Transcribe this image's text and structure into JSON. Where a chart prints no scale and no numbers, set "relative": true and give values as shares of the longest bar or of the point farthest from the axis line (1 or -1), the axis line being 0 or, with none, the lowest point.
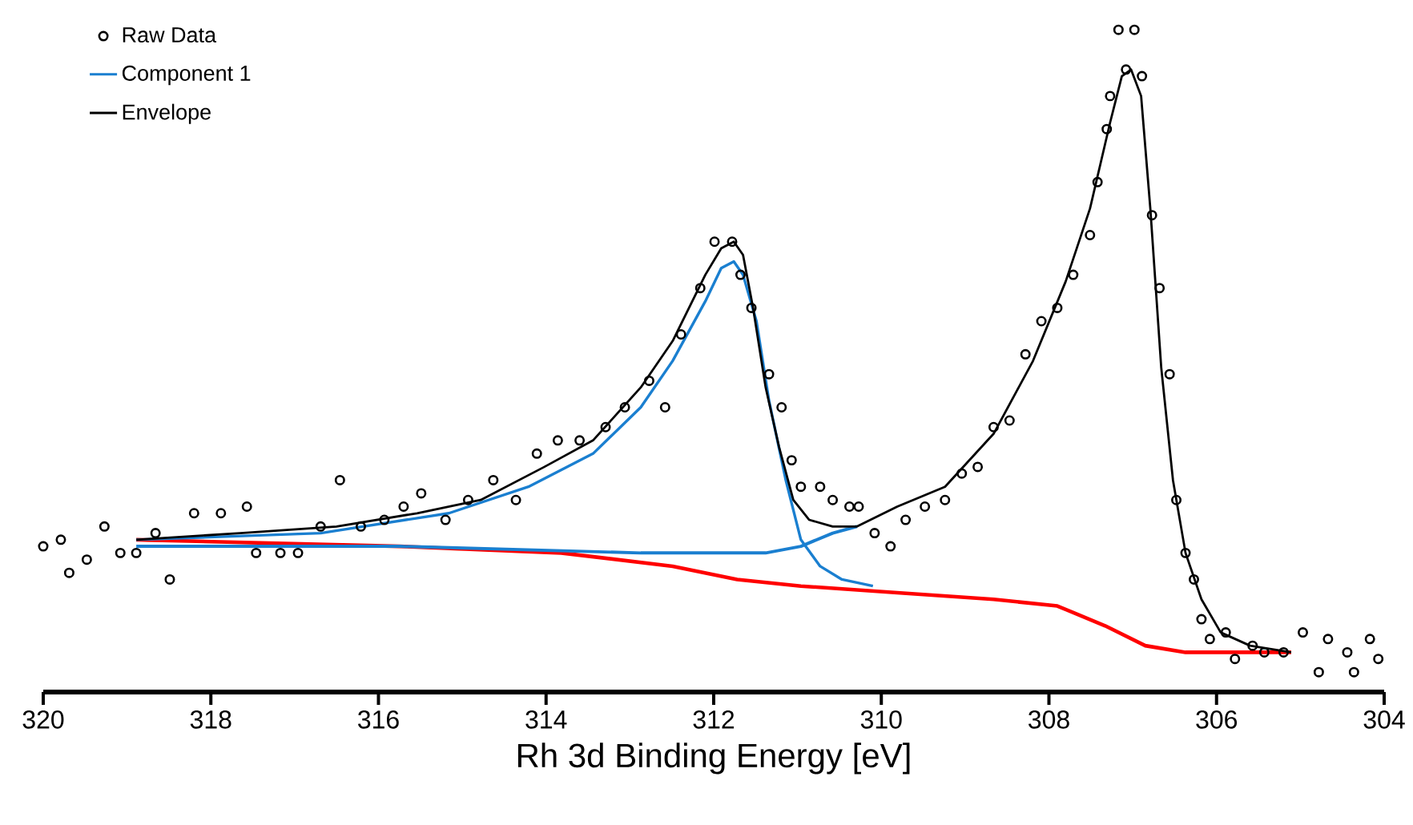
{
  "chart_data": {
    "type": "line",
    "xlabel": "Rh 3d Binding Energy [eV]",
    "relative": true,
    "xlim": [
      320,
      304
    ],
    "xticks": [
      320,
      318,
      316,
      314,
      312,
      310,
      308,
      306,
      304
    ],
    "legend": "top left",
    "series": [
      {
        "name": "Raw Data",
        "type": "scatter",
        "marker": "circle",
        "color": "#000000",
        "x": [
          320.0,
          319.79,
          319.69,
          319.48,
          319.27,
          319.08,
          318.89,
          318.66,
          318.49,
          318.2,
          317.88,
          317.57,
          317.46,
          317.17,
          316.96,
          316.69,
          316.46,
          316.21,
          315.93,
          315.7,
          315.49,
          315.2,
          314.93,
          314.63,
          314.36,
          314.11,
          313.86,
          313.6,
          313.29,
          313.06,
          312.77,
          312.58,
          312.39,
          312.16,
          311.99,
          311.78,
          311.68,
          311.55,
          311.34,
          311.19,
          311.07,
          310.96,
          310.73,
          310.58,
          310.38,
          310.27,
          310.08,
          309.89,
          309.71,
          309.48,
          309.24,
          309.04,
          308.85,
          308.66,
          308.47,
          308.28,
          308.09,
          307.9,
          307.71,
          307.51,
          307.42,
          307.31,
          307.27,
          307.17,
          307.08,
          306.98,
          306.89,
          306.77,
          306.68,
          306.56,
          306.48,
          306.37,
          306.27,
          306.18,
          306.08,
          305.89,
          305.78,
          305.57,
          305.43,
          305.2,
          304.97,
          304.78,
          304.67,
          304.44,
          304.36,
          304.17,
          304.07
        ],
        "values": [
          0.22,
          0.23,
          0.18,
          0.2,
          0.25,
          0.21,
          0.21,
          0.24,
          0.17,
          0.27,
          0.27,
          0.28,
          0.21,
          0.21,
          0.21,
          0.25,
          0.32,
          0.25,
          0.26,
          0.28,
          0.3,
          0.26,
          0.29,
          0.32,
          0.29,
          0.36,
          0.38,
          0.38,
          0.4,
          0.43,
          0.47,
          0.43,
          0.54,
          0.61,
          0.68,
          0.68,
          0.63,
          0.58,
          0.48,
          0.43,
          0.35,
          0.31,
          0.31,
          0.29,
          0.28,
          0.28,
          0.24,
          0.22,
          0.26,
          0.28,
          0.29,
          0.33,
          0.34,
          0.4,
          0.41,
          0.51,
          0.56,
          0.58,
          0.63,
          0.69,
          0.77,
          0.85,
          0.9,
          1.0,
          0.94,
          1.0,
          0.93,
          0.72,
          0.61,
          0.48,
          0.29,
          0.21,
          0.17,
          0.11,
          0.08,
          0.09,
          0.05,
          0.07,
          0.06,
          0.06,
          0.09,
          0.03,
          0.08,
          0.06,
          0.03,
          0.08,
          0.05
        ]
      },
      {
        "type": "line",
        "color": "#ff0000",
        "x": [
          318.89,
          315.74,
          313.82,
          312.49,
          311.72,
          310.96,
          309.81,
          308.66,
          307.9,
          307.33,
          306.85,
          306.37,
          305.11
        ],
        "values": [
          0.23,
          0.22,
          0.21,
          0.19,
          0.17,
          0.16,
          0.15,
          0.14,
          0.13,
          0.1,
          0.07,
          0.06,
          0.06
        ]
      },
      {
        "type": "line",
        "color": "#1a7fd0",
        "x": [
          318.89,
          315.74,
          312.87,
          311.91,
          311.38,
          310.96,
          310.58,
          310.29
        ],
        "values": [
          0.22,
          0.22,
          0.21,
          0.21,
          0.21,
          0.22,
          0.24,
          0.25
        ]
      },
      {
        "name": "Component 1",
        "type": "line",
        "color": "#1a7fd0",
        "x": [
          318.89,
          316.69,
          315.16,
          314.21,
          313.44,
          312.87,
          312.49,
          312.1,
          311.91,
          311.76,
          311.65,
          311.49,
          311.34,
          311.14,
          310.96,
          310.73,
          310.47,
          310.1
        ],
        "values": [
          0.23,
          0.24,
          0.27,
          0.31,
          0.36,
          0.43,
          0.5,
          0.59,
          0.64,
          0.65,
          0.63,
          0.56,
          0.44,
          0.32,
          0.23,
          0.19,
          0.17,
          0.16
        ]
      },
      {
        "name": "Envelope",
        "type": "line",
        "color": "#000000",
        "x": [
          318.89,
          317.65,
          316.5,
          315.54,
          314.78,
          314.02,
          313.44,
          312.87,
          312.49,
          312.1,
          311.91,
          311.76,
          311.65,
          311.53,
          311.38,
          311.22,
          311.05,
          310.86,
          310.58,
          310.29,
          309.81,
          309.24,
          308.66,
          308.19,
          307.8,
          307.51,
          307.27,
          307.13,
          307.02,
          306.9,
          306.79,
          306.66,
          306.52,
          306.37,
          306.18,
          305.95,
          305.6,
          305.11
        ],
        "values": [
          0.23,
          0.24,
          0.25,
          0.27,
          0.29,
          0.34,
          0.38,
          0.46,
          0.53,
          0.63,
          0.67,
          0.68,
          0.66,
          0.58,
          0.46,
          0.37,
          0.29,
          0.26,
          0.25,
          0.25,
          0.28,
          0.31,
          0.39,
          0.5,
          0.62,
          0.73,
          0.86,
          0.93,
          0.94,
          0.9,
          0.73,
          0.49,
          0.32,
          0.21,
          0.14,
          0.09,
          0.07,
          0.06
        ]
      }
    ]
  }
}
